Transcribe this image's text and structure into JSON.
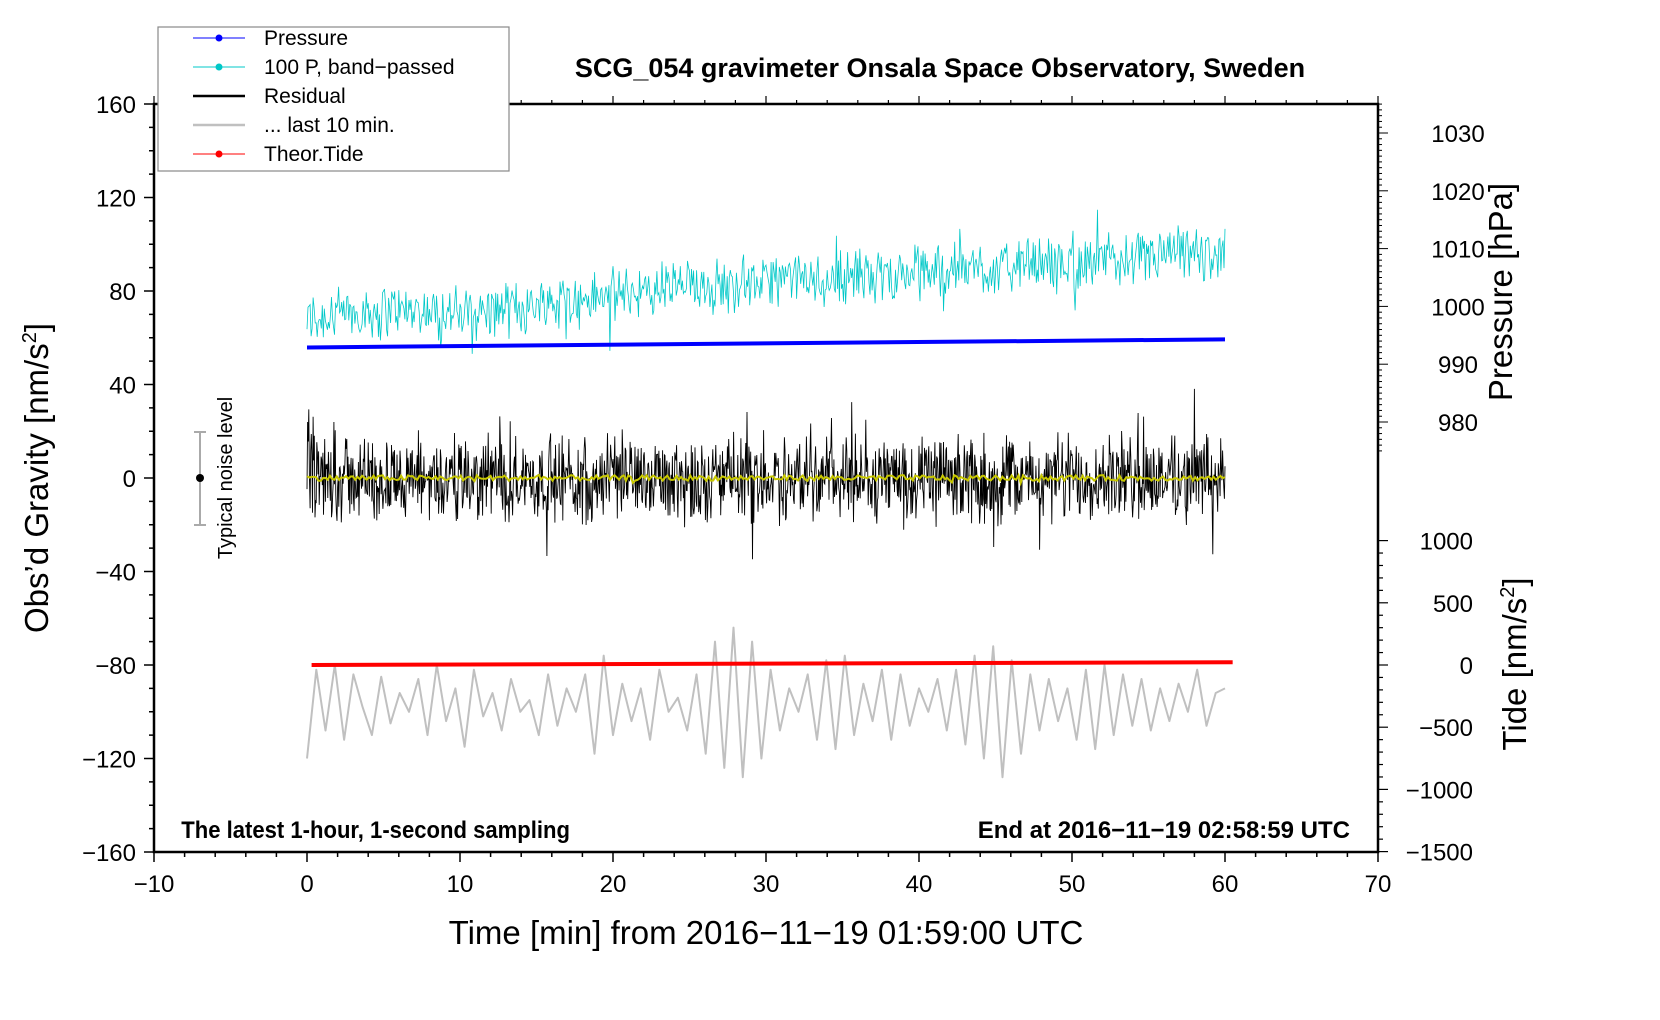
{
  "chart_data": {
    "type": "line",
    "title": "SCG_054 gravimeter Onsala Space Observatory, Sweden",
    "xlabel": "Time [min] from 2016−11−19 01:59:00 UTC",
    "ylabel": "Obs’d Gravity [nm/s",
    "ylabel_sup": "2",
    "ylabel_end": "]",
    "y2label": "Pressure [hPa]",
    "y3label": "Tide [nm/s",
    "y3label_sup": "2",
    "y3label_end": "]",
    "xlim": [
      -10,
      70
    ],
    "ylim": [
      -160,
      160
    ],
    "y2lim_visible": [
      975,
      1035
    ],
    "y3lim": [
      -1500,
      1000
    ],
    "xticks": [
      "−10",
      "0",
      "10",
      "20",
      "30",
      "40",
      "50",
      "60",
      "70"
    ],
    "yticks": [
      "160",
      "120",
      "80",
      "40",
      "0",
      "−40",
      "−80",
      "−120",
      "−160"
    ],
    "y2ticks": [
      "1030",
      "1020",
      "1010",
      "1000",
      "990",
      "980"
    ],
    "y3ticks": [
      "1000",
      "500",
      "0",
      "−500",
      "−1000",
      "−1500"
    ],
    "annotation_left": "The latest 1-hour, 1-second sampling",
    "annotation_right": "End at 2016−11−19 02:58:59 UTC",
    "noise_label": "Typical noise level",
    "noise_bar": {
      "x": -7,
      "center": 0,
      "halfwidth": 20
    },
    "legend": {
      "placement": "top-left",
      "entries": [
        {
          "label": "Pressure",
          "color": "#0000ff",
          "marker": true
        },
        {
          "label": "100 P, band−passed",
          "color": "#00c8c8",
          "marker": true
        },
        {
          "label": "Residual",
          "color": "#000000",
          "marker": false
        },
        {
          "label": "... last 10 min.",
          "color": "#c0c0c0",
          "marker": false
        },
        {
          "label": "Theor.Tide",
          "color": "#ff0000",
          "marker": true
        }
      ]
    },
    "series": [
      {
        "name": "Pressure",
        "axis": "pressure_hPa",
        "x": [
          0,
          60
        ],
        "values": [
          992.9,
          994.3
        ],
        "color": "#0000ff"
      },
      {
        "name": "100 P, band-passed",
        "axis": "gravity",
        "x_range": [
          0,
          60
        ],
        "trend": [
          68,
          72,
          70,
          74,
          78,
          82,
          84,
          86,
          88,
          90,
          92,
          94,
          96
        ],
        "noise_amplitude": 14,
        "color": "#00c8c8"
      },
      {
        "name": "Residual",
        "axis": "gravity",
        "x_range": [
          0,
          60
        ],
        "trend": [
          0
        ],
        "noise_amplitude": 22,
        "color": "#000000"
      },
      {
        "name": "Residual smoothed",
        "axis": "gravity",
        "x_range": [
          0,
          60
        ],
        "trend": [
          0
        ],
        "noise_amplitude": 1.2,
        "color": "#c8c800"
      },
      {
        "name": "... last 10 min.",
        "axis": "gravity",
        "x_range": [
          0,
          60
        ],
        "values": [
          -120,
          -82,
          -108,
          -80,
          -112,
          -84,
          -98,
          -110,
          -85,
          -105,
          -92,
          -100,
          -86,
          -110,
          -80,
          -104,
          -90,
          -115,
          -82,
          -102,
          -92,
          -108,
          -86,
          -100,
          -95,
          -110,
          -84,
          -106,
          -90,
          -100,
          -84,
          -118,
          -76,
          -110,
          -88,
          -104,
          -90,
          -112,
          -82,
          -100,
          -94,
          -108,
          -84,
          -118,
          -70,
          -124,
          -64,
          -128,
          -70,
          -120,
          -82,
          -108,
          -90,
          -100,
          -84,
          -112,
          -78,
          -116,
          -76,
          -110,
          -88,
          -104,
          -82,
          -112,
          -84,
          -106,
          -90,
          -100,
          -86,
          -108,
          -82,
          -114,
          -76,
          -120,
          -72,
          -128,
          -78,
          -118,
          -84,
          -108,
          -86,
          -104,
          -90,
          -112,
          -82,
          -116,
          -80,
          -110,
          -84,
          -106,
          -86,
          -108,
          -90,
          -104,
          -88,
          -100,
          -82,
          -106,
          -92,
          -90
        ],
        "color": "#c0c0c0"
      },
      {
        "name": "Theor.Tide",
        "axis": "tide",
        "x": [
          0.3,
          60.5
        ],
        "values": [
          0,
          22
        ],
        "color": "#ff0000"
      }
    ]
  }
}
